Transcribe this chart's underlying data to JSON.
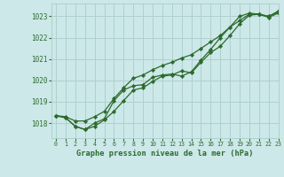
{
  "title": "Graphe pression niveau de la mer (hPa)",
  "bg_color": "#cce8e8",
  "grid_color": "#b0d0d0",
  "line_color": "#2d6a2d",
  "marker_color": "#2d6a2d",
  "xlim": [
    -0.5,
    23
  ],
  "ylim": [
    1017.3,
    1023.6
  ],
  "yticks": [
    1018,
    1019,
    1020,
    1021,
    1022,
    1023
  ],
  "xticks": [
    0,
    1,
    2,
    3,
    4,
    5,
    6,
    7,
    8,
    9,
    10,
    11,
    12,
    13,
    14,
    15,
    16,
    17,
    18,
    19,
    20,
    21,
    22,
    23
  ],
  "series1": [
    1018.35,
    1018.25,
    1017.85,
    1017.7,
    1017.85,
    1018.15,
    1018.55,
    1019.05,
    1019.55,
    1019.65,
    1019.95,
    1020.2,
    1020.25,
    1020.45,
    1020.35,
    1020.85,
    1021.3,
    1021.6,
    1022.1,
    1022.65,
    1023.05,
    1023.1,
    1023.0,
    1023.2
  ],
  "series2": [
    1018.35,
    1018.25,
    1017.85,
    1017.7,
    1018.0,
    1018.2,
    1019.05,
    1019.55,
    1019.75,
    1019.8,
    1020.15,
    1020.25,
    1020.3,
    1020.2,
    1020.4,
    1020.95,
    1021.45,
    1022.0,
    1022.5,
    1023.0,
    1023.15,
    1023.1,
    1022.95,
    1023.15
  ],
  "series3": [
    1018.35,
    1018.3,
    1018.1,
    1018.1,
    1018.3,
    1018.55,
    1019.15,
    1019.65,
    1020.1,
    1020.25,
    1020.5,
    1020.7,
    1020.85,
    1021.05,
    1021.2,
    1021.5,
    1021.8,
    1022.1,
    1022.5,
    1022.8,
    1023.1,
    1023.1,
    1023.0,
    1023.25
  ]
}
